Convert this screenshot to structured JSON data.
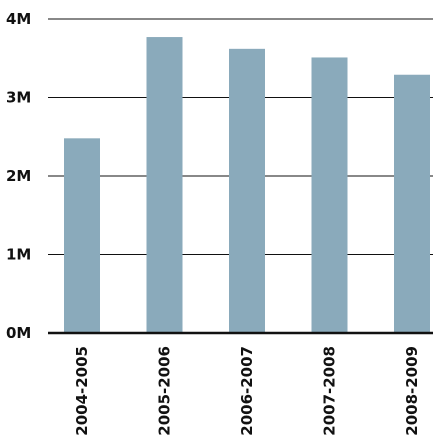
{
  "chart_data": {
    "type": "bar",
    "categories": [
      "2004-2005",
      "2005-2006",
      "2006-2007",
      "2007-2008",
      "2008-2009"
    ],
    "values": [
      2.48,
      3.77,
      3.62,
      3.51,
      3.29
    ],
    "title": "",
    "xlabel": "",
    "ylabel": "",
    "ylim": [
      0,
      4
    ],
    "yticks": [
      {
        "value": 0,
        "label": "0M"
      },
      {
        "value": 1,
        "label": "1M"
      },
      {
        "value": 2,
        "label": "2M"
      },
      {
        "value": 3,
        "label": "3M"
      },
      {
        "value": 4,
        "label": "4M"
      }
    ],
    "grid": true,
    "legend": "none"
  },
  "colors": {
    "bar": "#8aaabb",
    "grid": "#111111",
    "text": "#111111"
  }
}
